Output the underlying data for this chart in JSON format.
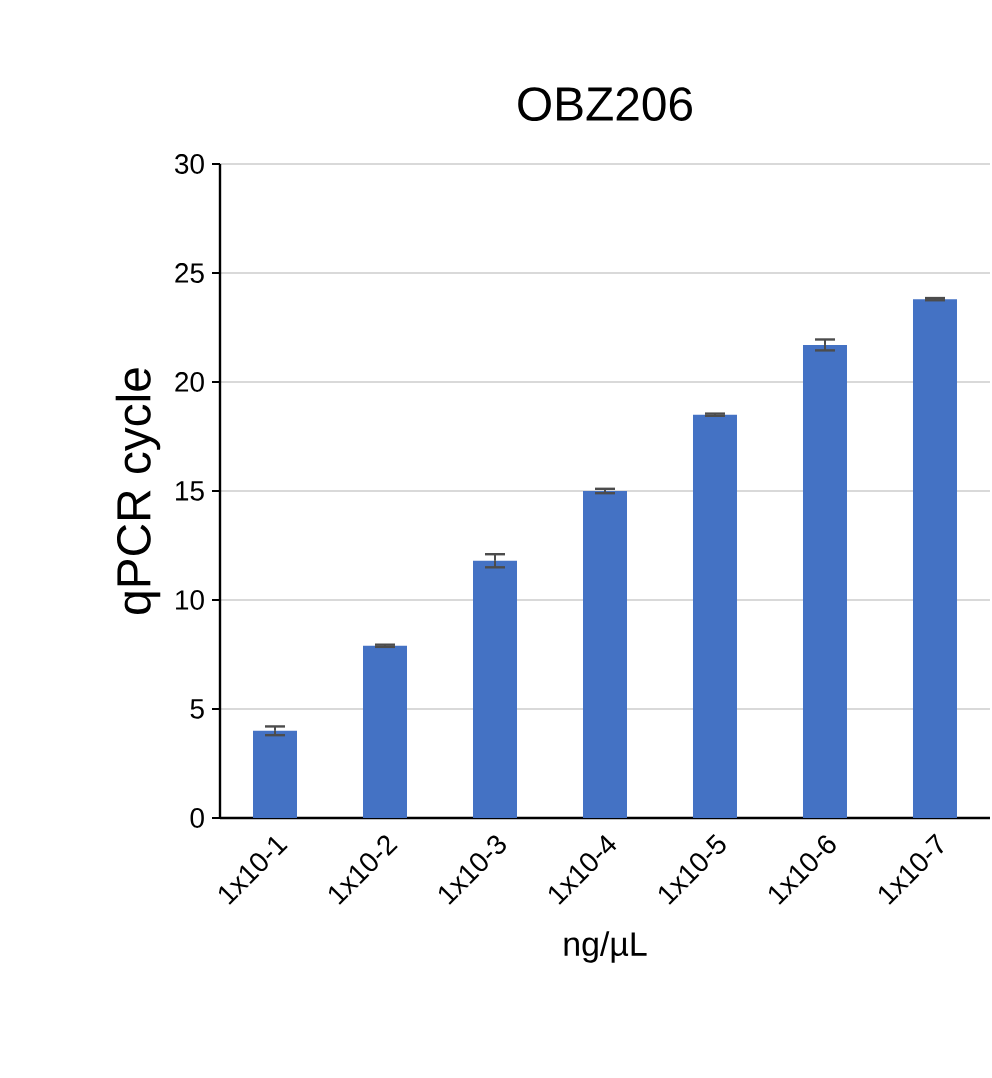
{
  "chart_data": {
    "type": "bar",
    "title": "OBZ206",
    "xlabel": "ng/µL",
    "ylabel": "qPCR cycle",
    "categories": [
      "1x10-1",
      "1x10-2",
      "1x10-3",
      "1x10-4",
      "1x10-5",
      "1x10-6",
      "1x10-7"
    ],
    "values": [
      4.0,
      7.9,
      11.8,
      15.0,
      18.5,
      21.7,
      23.8
    ],
    "errors": [
      0.2,
      0.05,
      0.3,
      0.1,
      0.05,
      0.25,
      0.05
    ],
    "color": "#4472c4",
    "ylim": [
      0,
      30
    ],
    "yticks": [
      0,
      5,
      10,
      15,
      20,
      25,
      30
    ],
    "grid": "y"
  }
}
